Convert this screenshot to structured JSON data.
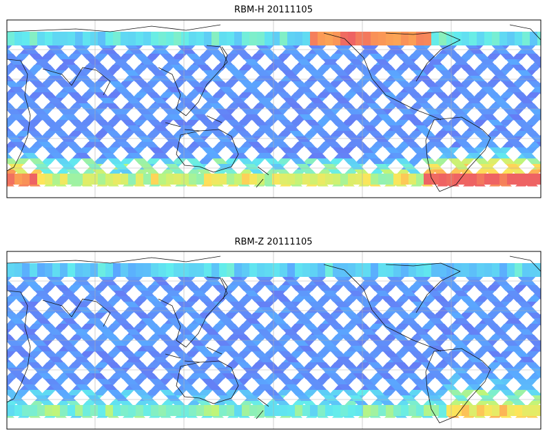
{
  "figure": {
    "panels": [
      {
        "title": "RBM-H 20111105"
      },
      {
        "title": "RBM-Z 20111105"
      }
    ]
  },
  "map_data": {
    "type": "swath-map",
    "projection": "equirectangular",
    "central_longitude": "Pacific-centred",
    "gridlines": true,
    "coastlines": true,
    "colormap": [
      "#6a6af0",
      "#5aa8ff",
      "#62ecee",
      "#bff57a",
      "#fde55a",
      "#fb9a55",
      "#ee6363"
    ],
    "panels": [
      {
        "name": "RBM-H",
        "date": "20111105",
        "polar_enhancement": "strong",
        "hotspot": "south-atlantic"
      },
      {
        "name": "RBM-Z",
        "date": "20111105",
        "polar_enhancement": "weak",
        "hotspot": "none"
      }
    ]
  }
}
